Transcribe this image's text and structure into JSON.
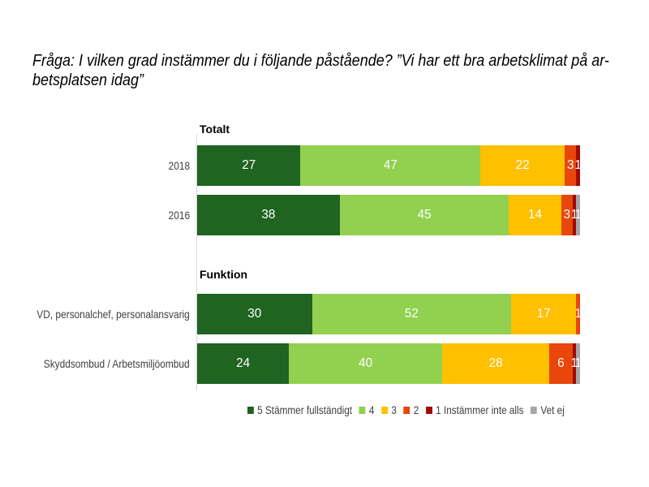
{
  "title_line1": "Fråga: I vilken grad instämmer du i följande påstående? ”Vi har ett bra arbetsklimat på ar-",
  "title_line2": "betsplatsen idag”",
  "chart_data": {
    "type": "bar",
    "orientation": "horizontal",
    "stacked": true,
    "unit": "percent",
    "value_labels": "white, centered in segment",
    "series": [
      {
        "name": "5 Stämmer fullständigt",
        "color": "#1f6420"
      },
      {
        "name": "4",
        "color": "#92d050"
      },
      {
        "name": "3",
        "color": "#ffc000"
      },
      {
        "name": "2",
        "color": "#e8460a"
      },
      {
        "name": "1 Instämmer inte alls",
        "color": "#a00a00"
      },
      {
        "name": "Vet ej",
        "color": "#a6a6a6"
      }
    ],
    "groups": [
      {
        "label": "Totalt",
        "rows": [
          {
            "category": "2018",
            "values": [
              27,
              47,
              22,
              3,
              1,
              0
            ]
          },
          {
            "category": "2016",
            "values": [
              38,
              45,
              14,
              3,
              1,
              1
            ]
          }
        ]
      },
      {
        "label": "Funktion",
        "rows": [
          {
            "category": "VD, personalchef, personalansvarig",
            "values": [
              30,
              52,
              17,
              1,
              0,
              0
            ]
          },
          {
            "category": "Skyddsombud / Arbetsmiljöombud",
            "values": [
              24,
              40,
              28,
              6,
              1,
              1
            ]
          }
        ]
      }
    ],
    "legend_position": "bottom"
  }
}
